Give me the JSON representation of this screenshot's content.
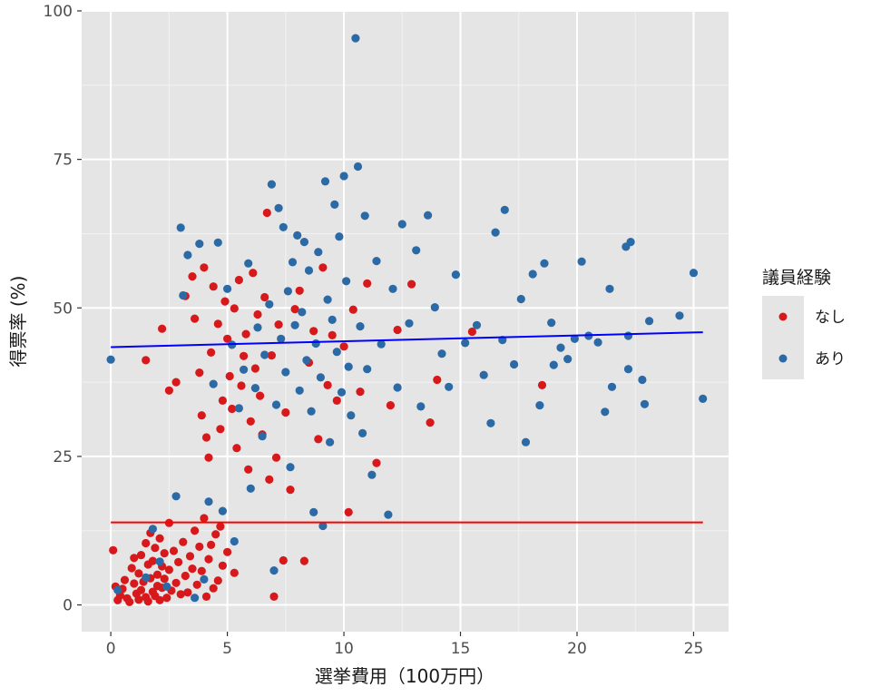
{
  "chart_data": {
    "type": "scatter",
    "title": "",
    "xlabel": "選挙費用（100万円）",
    "ylabel": "得票率 (%)",
    "xlim": [
      -1.25,
      26.5
    ],
    "ylim": [
      -4.5,
      100
    ],
    "x_ticks": [
      0,
      5,
      10,
      15,
      20,
      25
    ],
    "y_ticks": [
      0,
      25,
      50,
      75,
      100
    ],
    "x_tick_labels": [
      "0",
      "5",
      "10",
      "15",
      "20",
      "25"
    ],
    "y_tick_labels": [
      "0",
      "25",
      "50",
      "75",
      "100"
    ],
    "grid": true,
    "legend": {
      "title": "議員経験",
      "position": "right"
    },
    "colors": {
      "panel": "#e5e5e5",
      "grid": "#ffffff",
      "なし": "#d7191c",
      "あり": "#2c6aa6",
      "line_nashi": "#ff0000",
      "line_ari": "#0000ff"
    },
    "series": [
      {
        "name": "なし",
        "color": "#d7191c",
        "points": [
          [
            0.1,
            9.2
          ],
          [
            0.2,
            3.1
          ],
          [
            0.3,
            0.8
          ],
          [
            0.4,
            1.6
          ],
          [
            0.5,
            2.7
          ],
          [
            0.6,
            4.2
          ],
          [
            0.7,
            1.1
          ],
          [
            0.8,
            0.5
          ],
          [
            0.9,
            6.2
          ],
          [
            1.0,
            3.6
          ],
          [
            1.0,
            7.9
          ],
          [
            1.1,
            1.9
          ],
          [
            1.2,
            5.3
          ],
          [
            1.2,
            0.9
          ],
          [
            1.3,
            8.4
          ],
          [
            1.3,
            2.5
          ],
          [
            1.4,
            3.9
          ],
          [
            1.5,
            10.4
          ],
          [
            1.5,
            1.3
          ],
          [
            1.6,
            6.8
          ],
          [
            1.6,
            0.6
          ],
          [
            1.7,
            4.5
          ],
          [
            1.7,
            12.1
          ],
          [
            1.8,
            2.2
          ],
          [
            1.8,
            7.4
          ],
          [
            1.9,
            9.6
          ],
          [
            1.9,
            1.5
          ],
          [
            2.0,
            5.1
          ],
          [
            2.0,
            3.2
          ],
          [
            2.1,
            11.2
          ],
          [
            2.1,
            0.8
          ],
          [
            2.2,
            6.5
          ],
          [
            2.2,
            2.9
          ],
          [
            2.3,
            8.7
          ],
          [
            2.3,
            4.4
          ],
          [
            2.4,
            1.2
          ],
          [
            2.5,
            13.8
          ],
          [
            2.5,
            5.9
          ],
          [
            2.6,
            2.4
          ],
          [
            2.7,
            9.1
          ],
          [
            2.8,
            3.7
          ],
          [
            2.9,
            7.2
          ],
          [
            3.0,
            1.8
          ],
          [
            3.1,
            10.6
          ],
          [
            3.2,
            4.9
          ],
          [
            3.3,
            2.1
          ],
          [
            3.4,
            8.2
          ],
          [
            3.5,
            6.1
          ],
          [
            3.6,
            12.5
          ],
          [
            3.7,
            3.4
          ],
          [
            3.8,
            9.8
          ],
          [
            3.9,
            5.7
          ],
          [
            4.0,
            14.6
          ],
          [
            4.1,
            1.4
          ],
          [
            4.2,
            7.7
          ],
          [
            4.3,
            10.1
          ],
          [
            4.4,
            2.8
          ],
          [
            4.5,
            11.9
          ],
          [
            4.6,
            4.1
          ],
          [
            4.7,
            13.2
          ],
          [
            4.8,
            6.6
          ],
          [
            5.0,
            8.9
          ],
          [
            5.3,
            5.4
          ],
          [
            1.5,
            41.2
          ],
          [
            2.2,
            46.5
          ],
          [
            2.5,
            36.1
          ],
          [
            2.8,
            37.5
          ],
          [
            3.2,
            52.0
          ],
          [
            3.5,
            55.3
          ],
          [
            3.6,
            48.2
          ],
          [
            3.8,
            39.1
          ],
          [
            3.9,
            31.9
          ],
          [
            4.0,
            56.8
          ],
          [
            4.1,
            28.2
          ],
          [
            4.2,
            24.8
          ],
          [
            4.3,
            42.5
          ],
          [
            4.4,
            53.6
          ],
          [
            4.6,
            47.3
          ],
          [
            4.7,
            29.6
          ],
          [
            4.8,
            34.4
          ],
          [
            4.9,
            51.1
          ],
          [
            5.0,
            44.8
          ],
          [
            5.1,
            38.5
          ],
          [
            5.2,
            33.0
          ],
          [
            5.3,
            49.9
          ],
          [
            5.4,
            26.4
          ],
          [
            5.5,
            54.7
          ],
          [
            5.6,
            36.9
          ],
          [
            5.7,
            41.9
          ],
          [
            5.8,
            45.6
          ],
          [
            5.9,
            22.8
          ],
          [
            6.0,
            30.9
          ],
          [
            6.1,
            55.9
          ],
          [
            6.2,
            39.8
          ],
          [
            6.3,
            48.9
          ],
          [
            6.4,
            35.2
          ],
          [
            6.5,
            28.7
          ],
          [
            6.6,
            51.8
          ],
          [
            6.7,
            66.0
          ],
          [
            6.8,
            21.1
          ],
          [
            6.9,
            42.0
          ],
          [
            7.0,
            1.4
          ],
          [
            7.1,
            24.8
          ],
          [
            7.2,
            47.2
          ],
          [
            7.4,
            7.5
          ],
          [
            7.5,
            32.4
          ],
          [
            7.7,
            19.4
          ],
          [
            7.9,
            49.8
          ],
          [
            8.1,
            52.9
          ],
          [
            8.3,
            7.4
          ],
          [
            8.5,
            40.8
          ],
          [
            8.7,
            46.1
          ],
          [
            8.9,
            27.9
          ],
          [
            9.1,
            56.8
          ],
          [
            9.3,
            37.0
          ],
          [
            9.5,
            45.4
          ],
          [
            9.7,
            34.4
          ],
          [
            10.0,
            43.5
          ],
          [
            10.2,
            15.6
          ],
          [
            10.4,
            49.7
          ],
          [
            10.7,
            35.9
          ],
          [
            11.0,
            54.1
          ],
          [
            11.4,
            23.9
          ],
          [
            12.0,
            33.6
          ],
          [
            12.3,
            46.3
          ],
          [
            12.9,
            54.0
          ],
          [
            13.7,
            30.7
          ],
          [
            14.0,
            37.9
          ],
          [
            15.5,
            46.0
          ],
          [
            18.5,
            37.0
          ]
        ]
      },
      {
        "name": "あり",
        "color": "#2c6aa6",
        "points": [
          [
            0.0,
            41.3
          ],
          [
            0.3,
            2.5
          ],
          [
            1.5,
            4.6
          ],
          [
            1.8,
            12.8
          ],
          [
            2.1,
            7.3
          ],
          [
            2.4,
            3.1
          ],
          [
            2.8,
            18.3
          ],
          [
            3.0,
            63.5
          ],
          [
            3.1,
            52.1
          ],
          [
            3.3,
            58.9
          ],
          [
            3.6,
            1.2
          ],
          [
            3.8,
            60.8
          ],
          [
            4.0,
            4.3
          ],
          [
            4.2,
            17.4
          ],
          [
            4.4,
            37.2
          ],
          [
            4.6,
            61.0
          ],
          [
            4.8,
            15.8
          ],
          [
            5.0,
            53.2
          ],
          [
            5.2,
            43.8
          ],
          [
            5.3,
            10.7
          ],
          [
            5.5,
            33.1
          ],
          [
            5.7,
            39.6
          ],
          [
            5.9,
            57.5
          ],
          [
            6.0,
            19.6
          ],
          [
            6.2,
            36.5
          ],
          [
            6.3,
            46.7
          ],
          [
            6.5,
            28.4
          ],
          [
            6.6,
            42.1
          ],
          [
            6.8,
            50.6
          ],
          [
            6.9,
            70.8
          ],
          [
            7.0,
            5.8
          ],
          [
            7.1,
            33.7
          ],
          [
            7.2,
            66.8
          ],
          [
            7.3,
            44.8
          ],
          [
            7.4,
            63.6
          ],
          [
            7.5,
            39.2
          ],
          [
            7.6,
            52.8
          ],
          [
            7.7,
            23.2
          ],
          [
            7.8,
            57.7
          ],
          [
            7.9,
            47.1
          ],
          [
            8.0,
            62.2
          ],
          [
            8.1,
            36.1
          ],
          [
            8.2,
            49.3
          ],
          [
            8.3,
            61.1
          ],
          [
            8.4,
            41.2
          ],
          [
            8.5,
            56.3
          ],
          [
            8.6,
            32.6
          ],
          [
            8.7,
            15.6
          ],
          [
            8.8,
            44.0
          ],
          [
            8.9,
            59.4
          ],
          [
            9.0,
            38.3
          ],
          [
            9.1,
            13.3
          ],
          [
            9.2,
            71.3
          ],
          [
            9.3,
            51.4
          ],
          [
            9.4,
            27.4
          ],
          [
            9.5,
            48.0
          ],
          [
            9.6,
            67.4
          ],
          [
            9.7,
            42.6
          ],
          [
            9.8,
            62.0
          ],
          [
            9.9,
            35.8
          ],
          [
            10.0,
            72.2
          ],
          [
            10.1,
            54.5
          ],
          [
            10.2,
            40.1
          ],
          [
            10.3,
            31.9
          ],
          [
            10.5,
            95.4
          ],
          [
            10.6,
            73.8
          ],
          [
            10.7,
            46.9
          ],
          [
            10.8,
            28.9
          ],
          [
            10.9,
            65.5
          ],
          [
            11.0,
            39.7
          ],
          [
            11.2,
            21.9
          ],
          [
            11.4,
            57.9
          ],
          [
            11.6,
            43.9
          ],
          [
            11.9,
            15.2
          ],
          [
            12.1,
            53.2
          ],
          [
            12.3,
            36.6
          ],
          [
            12.5,
            64.1
          ],
          [
            12.8,
            47.4
          ],
          [
            13.1,
            59.7
          ],
          [
            13.3,
            33.4
          ],
          [
            13.6,
            65.6
          ],
          [
            13.9,
            50.1
          ],
          [
            14.2,
            42.3
          ],
          [
            14.5,
            36.7
          ],
          [
            14.8,
            55.6
          ],
          [
            15.2,
            44.1
          ],
          [
            15.7,
            47.1
          ],
          [
            16.0,
            38.7
          ],
          [
            16.3,
            30.6
          ],
          [
            16.5,
            62.7
          ],
          [
            16.8,
            44.6
          ],
          [
            16.9,
            66.5
          ],
          [
            17.3,
            40.5
          ],
          [
            17.6,
            51.5
          ],
          [
            17.8,
            27.4
          ],
          [
            18.1,
            55.7
          ],
          [
            18.4,
            33.6
          ],
          [
            18.6,
            57.5
          ],
          [
            18.9,
            47.5
          ],
          [
            19.0,
            40.4
          ],
          [
            19.3,
            43.3
          ],
          [
            19.6,
            41.4
          ],
          [
            19.9,
            44.8
          ],
          [
            20.2,
            57.8
          ],
          [
            20.5,
            45.3
          ],
          [
            20.9,
            44.2
          ],
          [
            21.2,
            32.5
          ],
          [
            21.4,
            53.2
          ],
          [
            21.5,
            36.7
          ],
          [
            22.1,
            60.3
          ],
          [
            22.3,
            61.1
          ],
          [
            22.2,
            45.3
          ],
          [
            22.2,
            39.7
          ],
          [
            22.8,
            37.9
          ],
          [
            22.9,
            33.8
          ],
          [
            23.1,
            47.8
          ],
          [
            24.4,
            48.7
          ],
          [
            25.0,
            55.9
          ],
          [
            25.4,
            34.7
          ]
        ]
      }
    ],
    "trend_lines": [
      {
        "name": "なし",
        "color": "#ff0000",
        "x": [
          0,
          25.4
        ],
        "y": [
          13.9,
          13.9
        ]
      },
      {
        "name": "あり",
        "color": "#0000ff",
        "x": [
          0,
          25.4
        ],
        "y": [
          43.4,
          45.9
        ]
      }
    ]
  }
}
